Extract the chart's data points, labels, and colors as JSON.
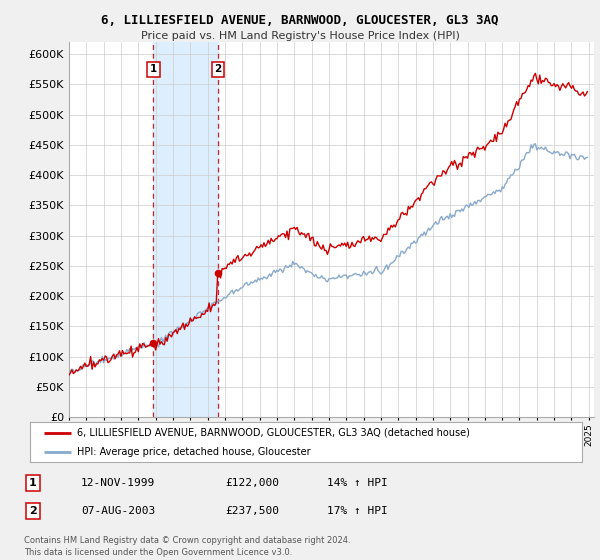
{
  "title": "6, LILLIESFIELD AVENUE, BARNWOOD, GLOUCESTER, GL3 3AQ",
  "subtitle": "Price paid vs. HM Land Registry's House Price Index (HPI)",
  "ylim": [
    0,
    620000
  ],
  "yticks": [
    0,
    50000,
    100000,
    150000,
    200000,
    250000,
    300000,
    350000,
    400000,
    450000,
    500000,
    550000,
    600000
  ],
  "xlim_start": 1995.0,
  "xlim_end": 2025.3,
  "transaction1": {
    "date_str": "12-NOV-1999",
    "date_x": 1999.87,
    "price": 122000,
    "label": "1",
    "hpi_pct": "14% ↑ HPI"
  },
  "transaction2": {
    "date_str": "07-AUG-2003",
    "date_x": 2003.6,
    "price": 237500,
    "label": "2",
    "hpi_pct": "17% ↑ HPI"
  },
  "highlight_color": "#ddeeff",
  "vline_color": "#cc0000",
  "dot_color": "#cc0000",
  "hpi_line_color": "#88aacc",
  "property_line_color": "#cc0000",
  "legend_label_property": "6, LILLIESFIELD AVENUE, BARNWOOD, GLOUCESTER, GL3 3AQ (detached house)",
  "legend_label_hpi": "HPI: Average price, detached house, Gloucester",
  "table_row1": [
    "1",
    "12-NOV-1999",
    "£122,000",
    "14% ↑ HPI"
  ],
  "table_row2": [
    "2",
    "07-AUG-2003",
    "£237,500",
    "17% ↑ HPI"
  ],
  "footer": "Contains HM Land Registry data © Crown copyright and database right 2024.\nThis data is licensed under the Open Government Licence v3.0.",
  "bg_color": "#f0f0f0",
  "plot_bg_color": "#ffffff",
  "grid_color": "#cccccc"
}
